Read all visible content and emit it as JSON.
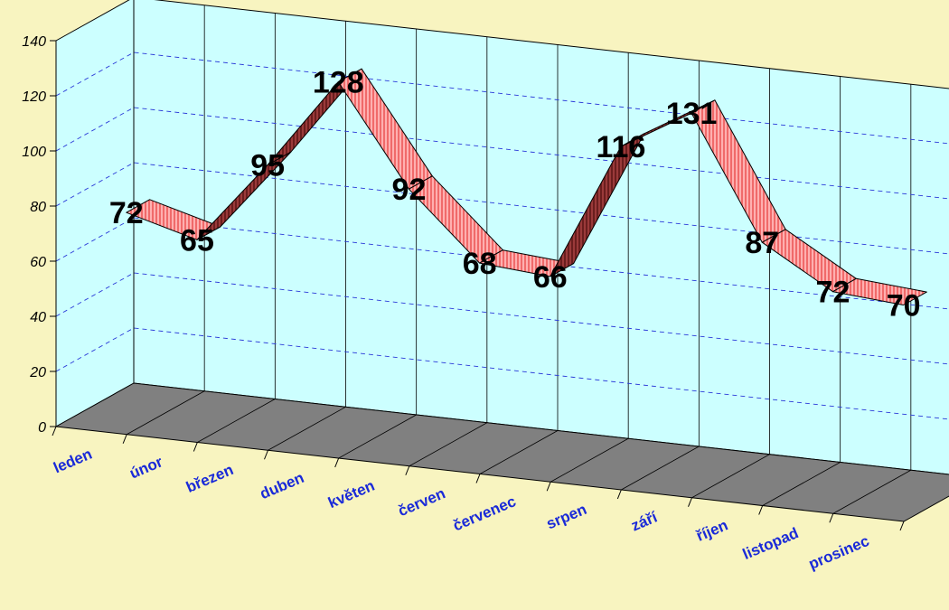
{
  "chart_data": {
    "type": "line",
    "style": "3d-ribbon",
    "categories": [
      "leden",
      "únor",
      "březen",
      "duben",
      "květen",
      "červen",
      "červenec",
      "srpen",
      "září",
      "říjen",
      "listopad",
      "prosinec"
    ],
    "values": [
      72,
      65,
      95,
      128,
      92,
      68,
      66,
      116,
      131,
      87,
      72,
      70
    ],
    "ylim": [
      0,
      140
    ],
    "yticks": [
      0,
      20,
      40,
      60,
      80,
      100,
      120,
      140
    ],
    "grid": true,
    "legend": "none",
    "colors": {
      "background": "#f8f4c0",
      "wall": "#ccffff",
      "floor": "#808080",
      "ribbon_top": "#ff9999",
      "ribbon_side": "#8b2f2f",
      "category_label": "#1a2ad8"
    }
  }
}
